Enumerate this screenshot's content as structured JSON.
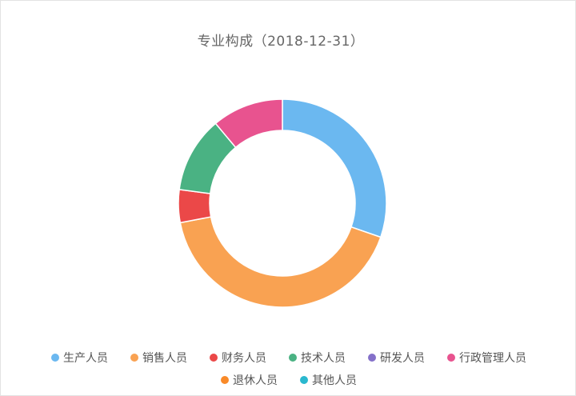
{
  "chart_data": {
    "type": "pie",
    "title": "专业构成（2018-12-31）",
    "donut": true,
    "legend_position": "bottom",
    "categories": [
      "生产人员",
      "销售人员",
      "财务人员",
      "技术人员",
      "研发人员",
      "行政管理人员",
      "退休人员",
      "其他人员"
    ],
    "values": [
      30.3,
      41.7,
      5.1,
      11.8,
      0,
      11.1,
      0,
      0
    ],
    "colors": [
      "#6bb8f0",
      "#f9a252",
      "#eb4848",
      "#4ab283",
      "#8470c9",
      "#e8538f",
      "#f98a28",
      "#2ab8cf"
    ]
  }
}
